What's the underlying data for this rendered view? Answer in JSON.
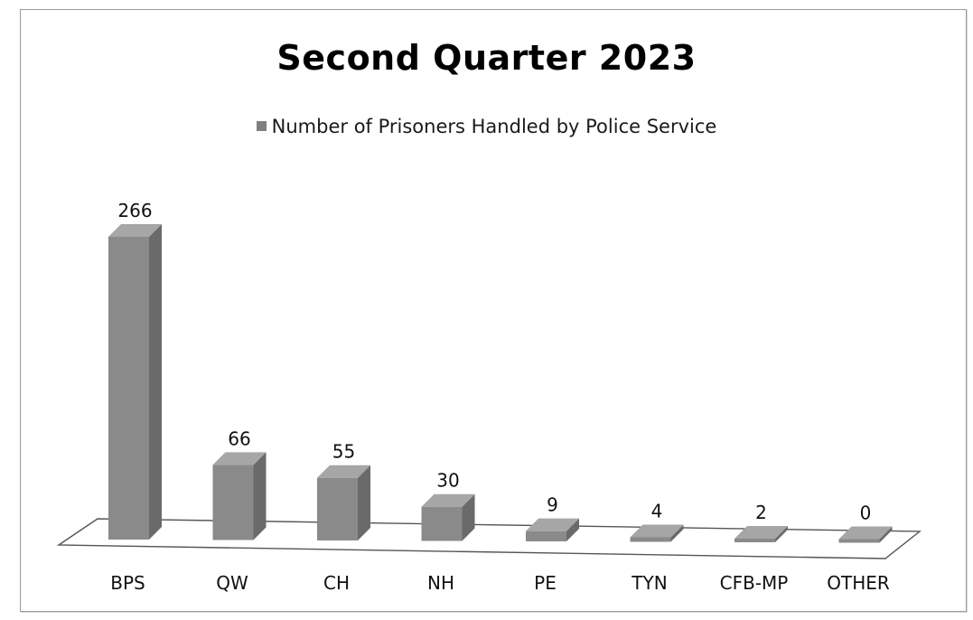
{
  "chart_data": {
    "type": "bar",
    "title": "Second Quarter 2023",
    "categories": [
      "BPS",
      "QW",
      "CH",
      "NH",
      "PE",
      "TYN",
      "CFB-MP",
      "OTHER"
    ],
    "series": [
      {
        "name": "Number of Prisoners Handled by Police Service",
        "values": [
          266,
          66,
          55,
          30,
          9,
          4,
          2,
          0
        ]
      }
    ],
    "data_labels": [
      "266",
      "66",
      "55",
      "30",
      "9",
      "4",
      "2",
      "0"
    ],
    "xlabel": "",
    "ylabel": "",
    "ylim": [
      0,
      266
    ],
    "grid": false,
    "legend_position": "top",
    "style": "3d-column",
    "colors": {
      "bar_front": "#8a8a8a",
      "bar_side": "#6a6a6a",
      "bar_top": "#a6a6a6",
      "legend_swatch": "#808080",
      "floor": "#ffffff",
      "floor_edge": "#555555"
    }
  }
}
